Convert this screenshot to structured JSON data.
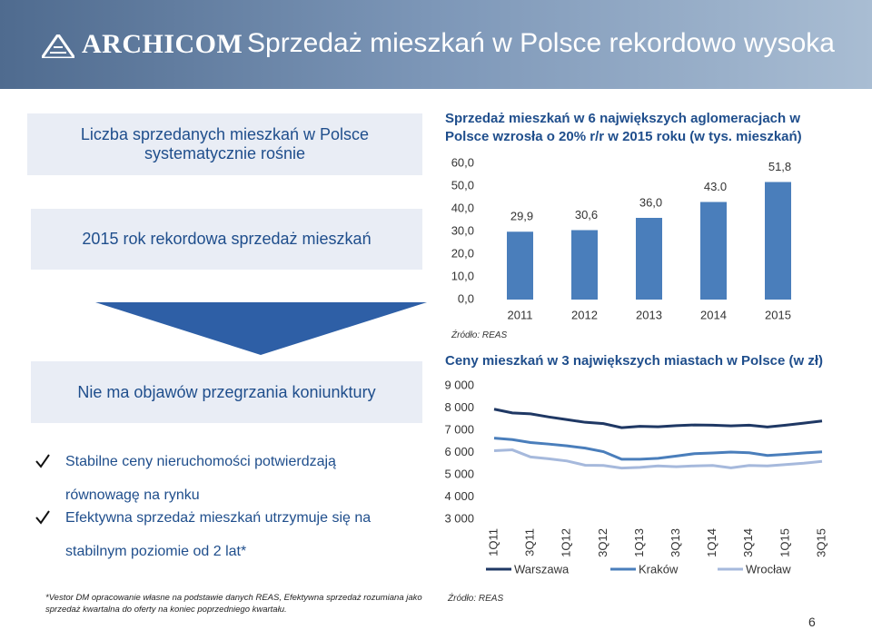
{
  "header": {
    "logo": "ARCHICOM",
    "title": "Sprzedaż mieszkań w Polsce rekordowo wysoka"
  },
  "left": {
    "box1": "Liczba sprzedanych mieszkań w Polsce systematycznie rośnie",
    "box2": "2015 rok rekordowa sprzedaż mieszkań",
    "box3": "Nie ma objawów przegrzania koniunktury",
    "bullets": [
      "Stabilne ceny nieruchomości potwierdzają równowagę na rynku",
      "Efektywna sprzedaż mieszkań utrzymuje się na stabilnym poziomie od 2 lat*"
    ]
  },
  "chart_data": [
    {
      "type": "bar",
      "title": "Sprzedaż mieszkań w 6 największych aglomeracjach w Polsce wzrosła o 20% r/r w 2015 roku (w tys. mieszkań)",
      "categories": [
        "2011",
        "2012",
        "2013",
        "2014",
        "2015"
      ],
      "values": [
        29.9,
        30.6,
        36.0,
        43.0,
        51.8
      ],
      "value_labels": [
        "29,9",
        "30,6",
        "36,0",
        "43.0",
        "51,8"
      ],
      "color": "#4a7ebb",
      "ylim": [
        0,
        60
      ],
      "yticks": [
        {
          "value": 0,
          "label": "0,0"
        },
        {
          "value": 10,
          "label": "10,0"
        },
        {
          "value": 20,
          "label": "20,0"
        },
        {
          "value": 30,
          "label": "30,0"
        },
        {
          "value": 40,
          "label": "40,0"
        },
        {
          "value": 50,
          "label": "50,0"
        },
        {
          "value": 60,
          "label": "60,0"
        }
      ],
      "source": "Źródło: REAS"
    },
    {
      "type": "line",
      "title": "Ceny mieszkań w 3 największych miastach w Polsce (w zł)",
      "categories": [
        "1Q11",
        null,
        "3Q11",
        null,
        "1Q12",
        null,
        "3Q12",
        null,
        "1Q13",
        null,
        "3Q13",
        null,
        "1Q14",
        null,
        "3Q14",
        null,
        "1Q15",
        null,
        "3Q15"
      ],
      "series": [
        {
          "name": "Warszawa",
          "color": "#1f3864",
          "values": [
            7950,
            7780,
            7740,
            7600,
            7480,
            7360,
            7300,
            7120,
            7180,
            7160,
            7210,
            7240,
            7230,
            7200,
            7230,
            7150,
            7230,
            7320,
            7420
          ]
        },
        {
          "name": "Kraków",
          "color": "#4a7ebb",
          "values": [
            6650,
            6580,
            6450,
            6380,
            6300,
            6200,
            6040,
            5700,
            5700,
            5740,
            5840,
            5950,
            5980,
            6020,
            5990,
            5870,
            5920,
            5980,
            6030
          ]
        },
        {
          "name": "Wrocław",
          "color": "#a6b9dc",
          "values": [
            6080,
            6120,
            5800,
            5720,
            5620,
            5430,
            5420,
            5300,
            5330,
            5400,
            5360,
            5400,
            5420,
            5310,
            5420,
            5400,
            5460,
            5520,
            5600
          ]
        }
      ],
      "ylim": [
        3000,
        9000
      ],
      "yticks": [
        {
          "value": 3000,
          "label": "3 000"
        },
        {
          "value": 4000,
          "label": "4 000"
        },
        {
          "value": 5000,
          "label": "5 000"
        },
        {
          "value": 6000,
          "label": "6 000"
        },
        {
          "value": 7000,
          "label": "7 000"
        },
        {
          "value": 8000,
          "label": "8 000"
        },
        {
          "value": 9000,
          "label": "9 000"
        }
      ],
      "source": "Źródło: REAS"
    }
  ],
  "footnote": "*Vestor DM opracowanie własne na podstawie danych REAS, Efektywna sprzedaż rozumiana jako sprzedaż kwartalna do oferty na koniec poprzedniego kwartału.",
  "page_number": "6"
}
